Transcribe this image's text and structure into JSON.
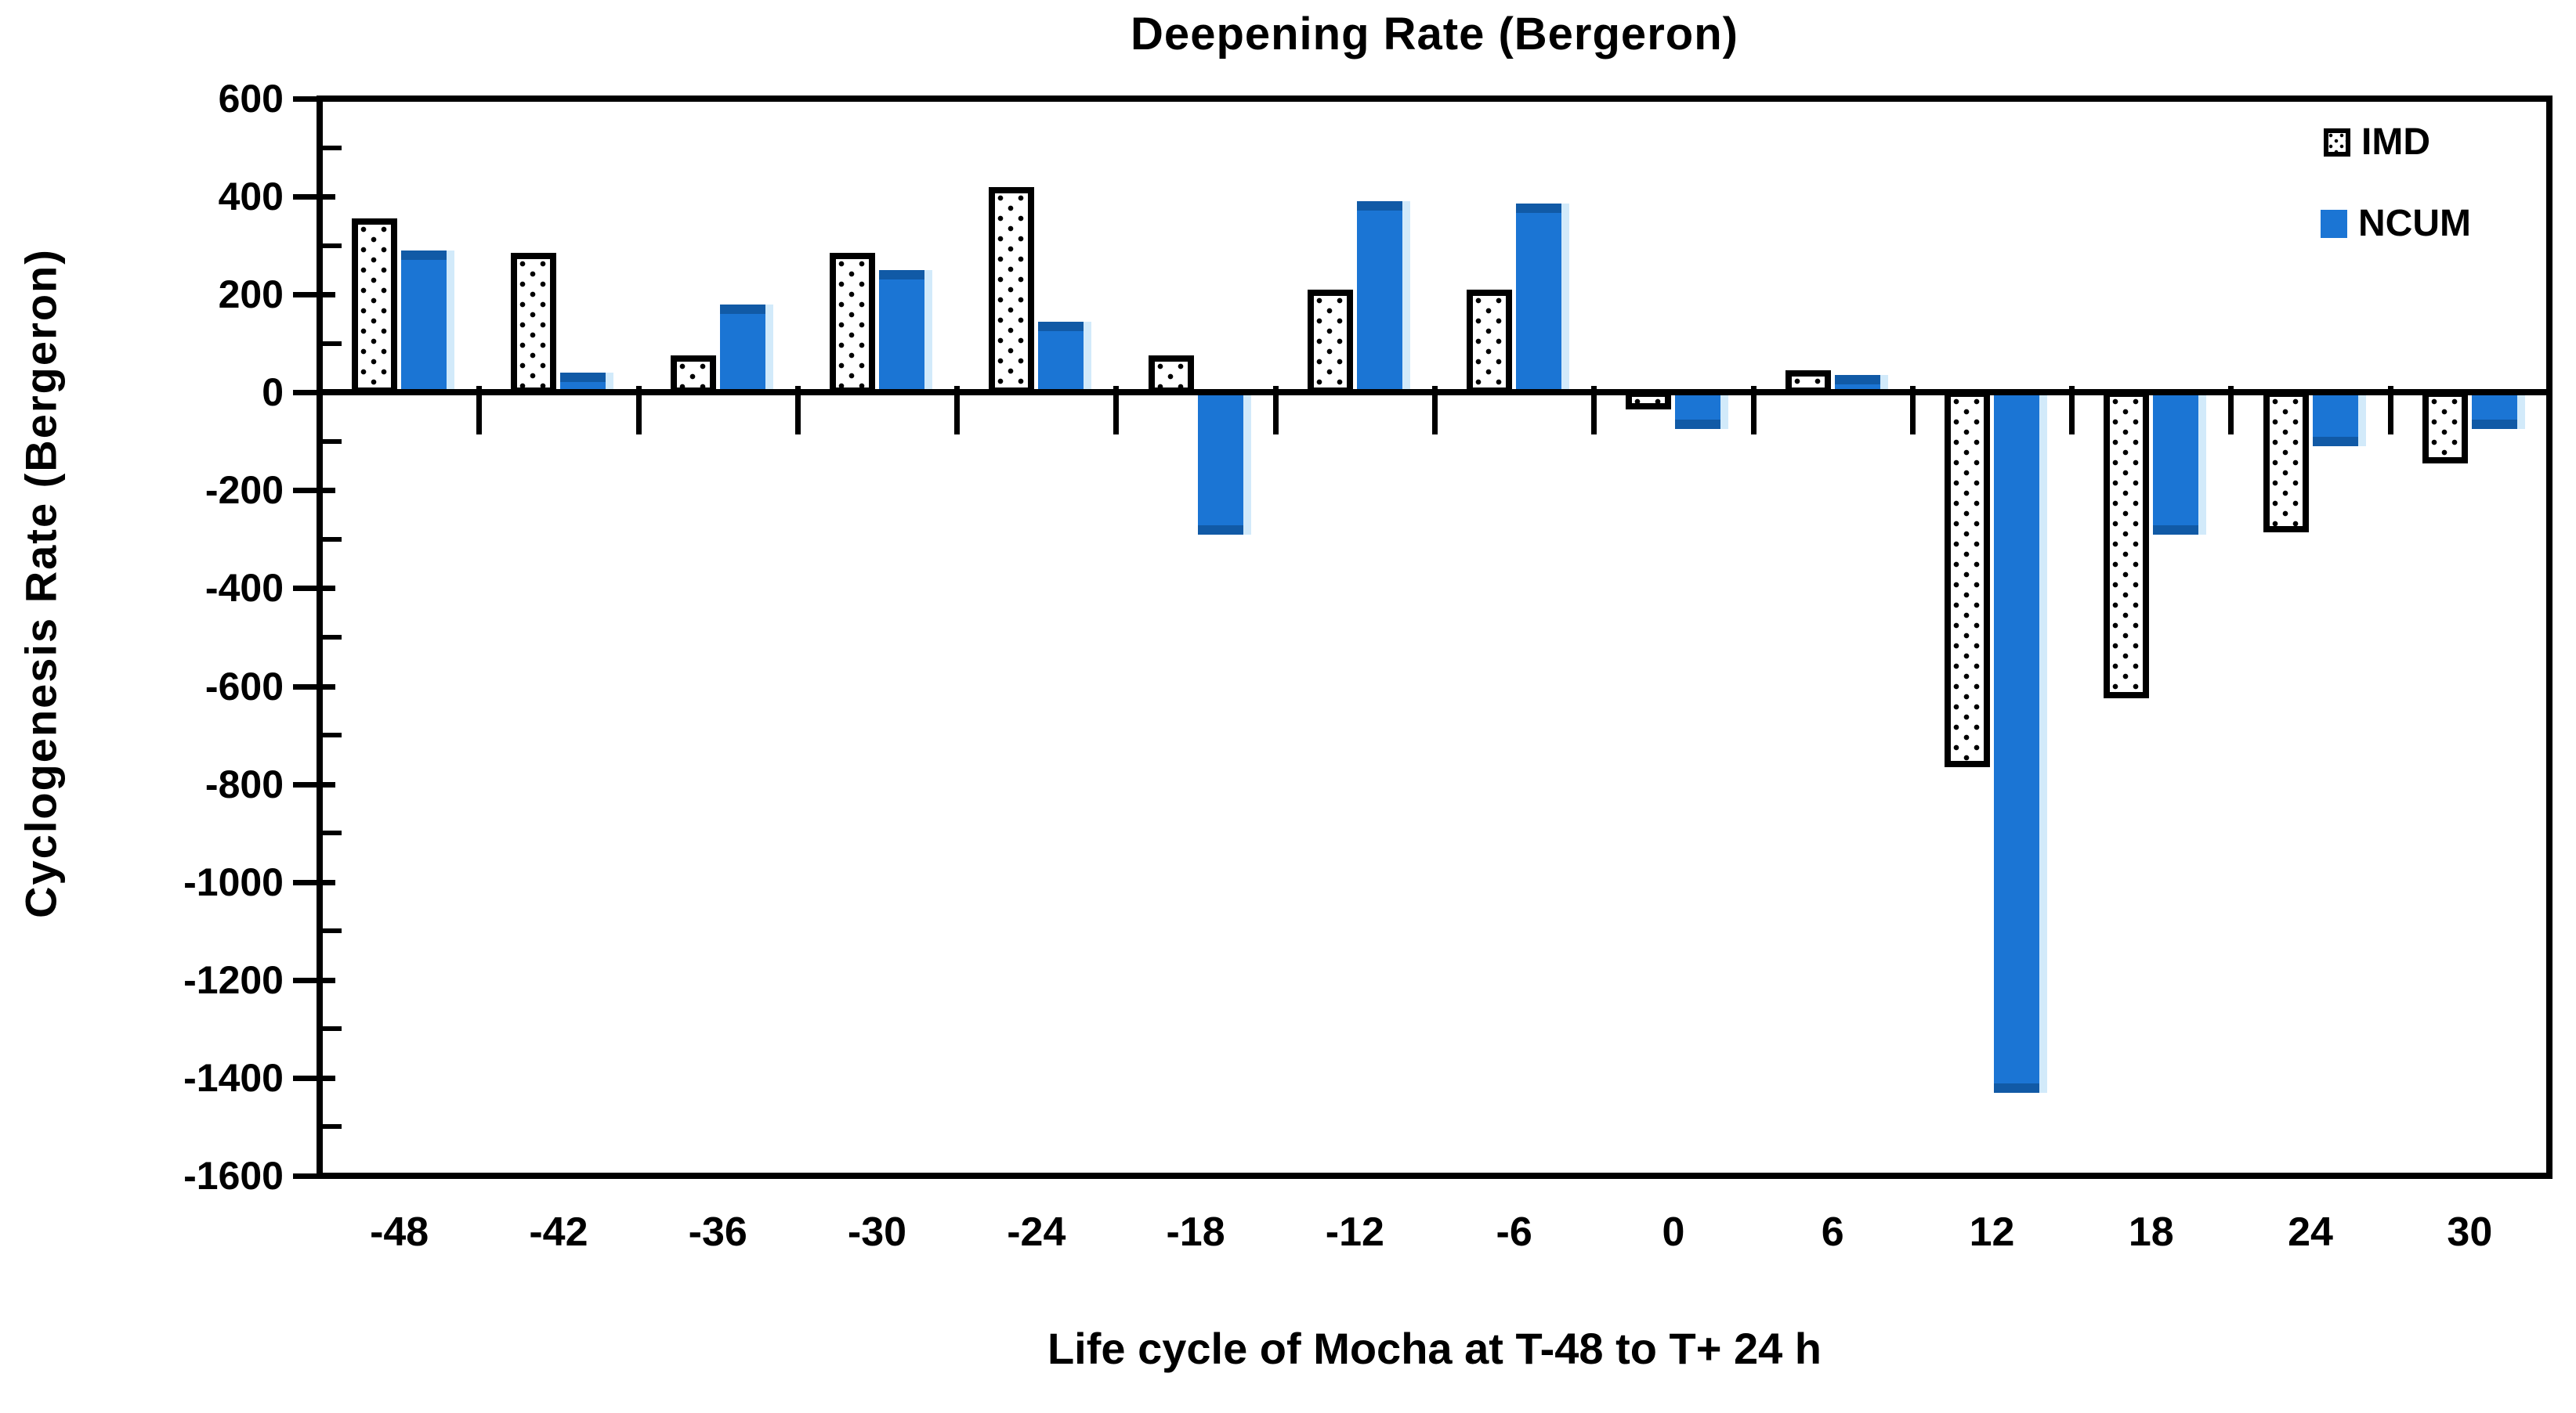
{
  "title": "Deepening Rate (Bergeron)",
  "y_axis": {
    "title": "Cyclogenesis Rate (Bergeron)"
  },
  "x_axis": {
    "title": "Life cycle of Mocha at T-48 to T+ 24 h"
  },
  "legend": [
    {
      "label": "IMD",
      "swatch": "dotted-white"
    },
    {
      "label": "NCUM",
      "swatch": "solid-blue"
    }
  ],
  "colors": {
    "ncum_blue": "#1b75d4",
    "ncum_blue_dark": "#115aa6",
    "bar_outline": "#000000",
    "background": "#ffffff"
  },
  "chart_data": {
    "type": "bar",
    "title": "Deepening Rate (Bergeron)",
    "xlabel": "Life cycle of Mocha at T-48 to T+ 24 h",
    "ylabel": "Cyclogenesis Rate (Bergeron)",
    "categories": [
      "-48",
      "-42",
      "-36",
      "-30",
      "-24",
      "-18",
      "-12",
      "-6",
      "0",
      "6",
      "12",
      "18",
      "24",
      "30"
    ],
    "series": [
      {
        "name": "IMD",
        "style": "dotted-white",
        "values": [
          355,
          285,
          75,
          285,
          420,
          75,
          210,
          210,
          -35,
          45,
          -765,
          -625,
          -285,
          -145
        ]
      },
      {
        "name": "NCUM",
        "style": "solid-blue",
        "values": [
          290,
          40,
          180,
          250,
          145,
          -290,
          390,
          385,
          -75,
          35,
          -1430,
          -290,
          -110,
          -75
        ]
      }
    ],
    "ylim": [
      -1600,
      600
    ],
    "y_tick_step": 200,
    "y_ticks": [
      600,
      400,
      200,
      0,
      -200,
      -400,
      -600,
      -800,
      -1000,
      -1200,
      -1400,
      -1600
    ],
    "y_minor_tick_step": 100,
    "grid": false,
    "legend_position": "top-right"
  }
}
